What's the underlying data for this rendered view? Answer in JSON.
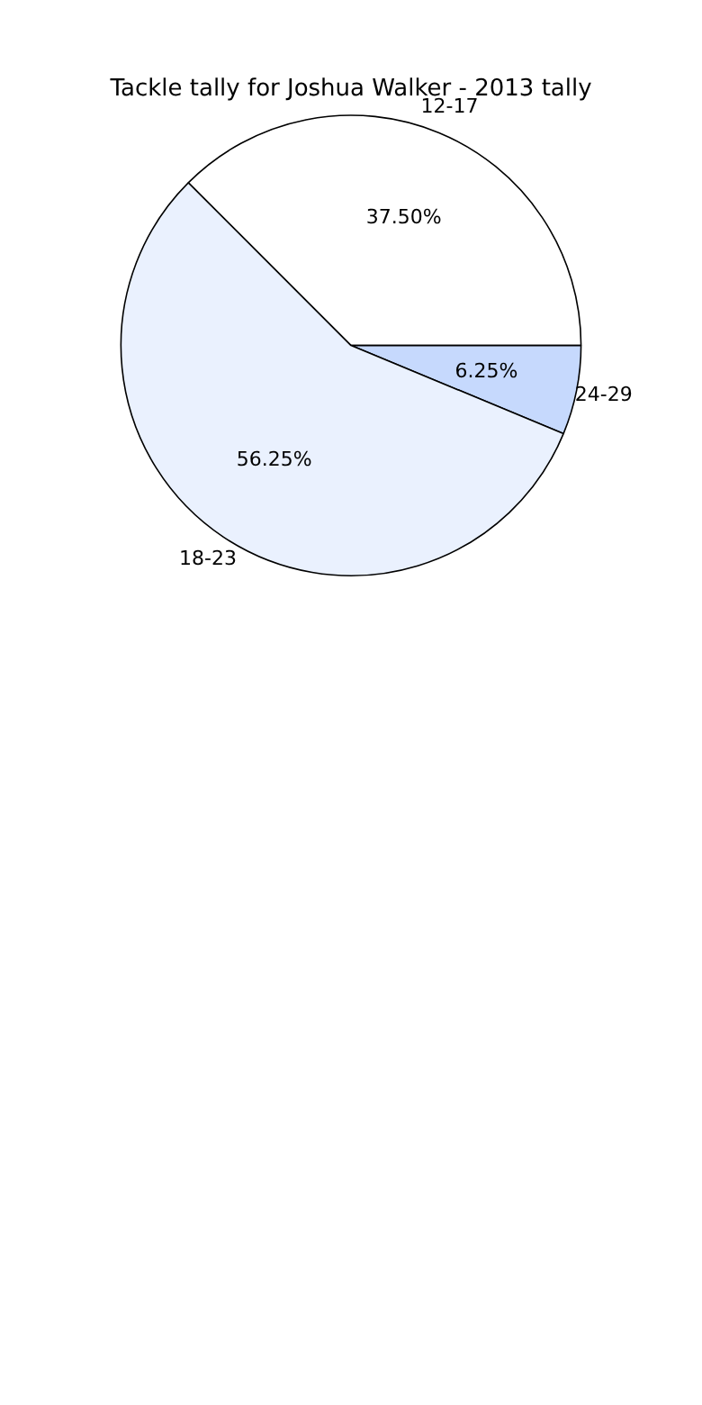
{
  "chart_data": {
    "type": "pie",
    "title": "Tackle tally for Joshua Walker - 2013 tally",
    "categories": [
      "12-17",
      "24-29",
      "18-23"
    ],
    "values": [
      37.5,
      6.25,
      56.25
    ],
    "value_labels": [
      "37.50%",
      "6.25%",
      "56.25%"
    ],
    "colors": [
      "#ffffff",
      "#c6d9fd",
      "#eaf1fe"
    ],
    "legend": false
  }
}
